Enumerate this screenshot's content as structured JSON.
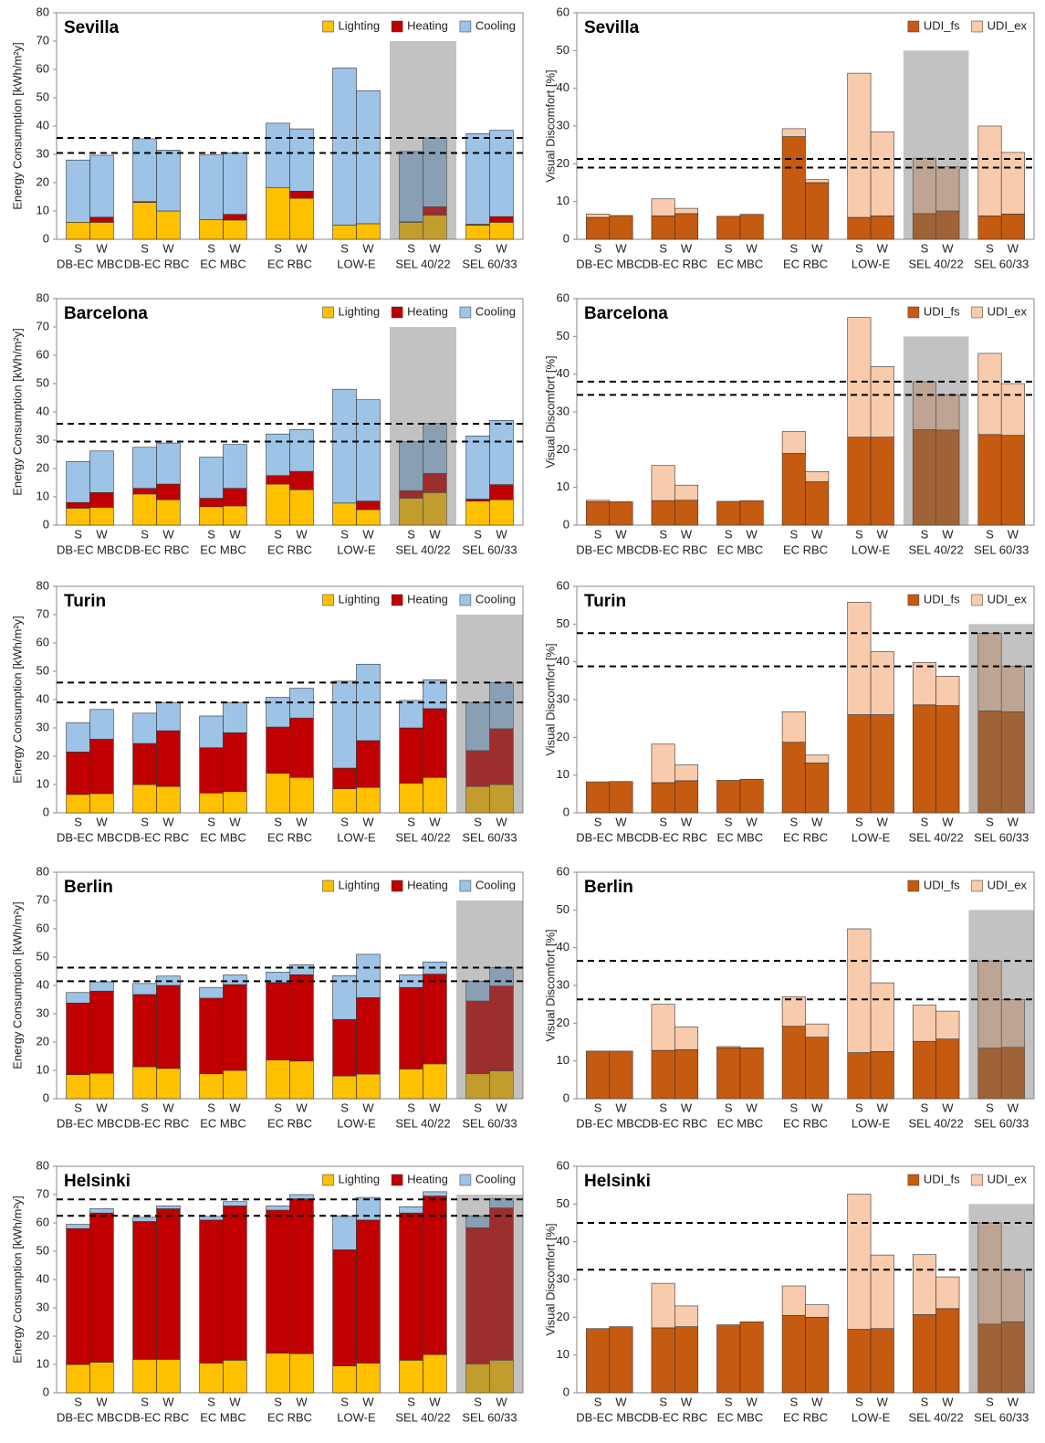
{
  "chart_data": [
    {
      "type": "stacked_bar",
      "title": "Sevilla",
      "y_label": "Energy Consumption [kWh/m²y]",
      "categories": [
        "S",
        "W",
        "S",
        "W",
        "S",
        "W",
        "S",
        "W",
        "S",
        "W",
        "S",
        "W",
        "S",
        "W"
      ],
      "groups": [
        "DB-EC MBC",
        "DB-EC RBC",
        "EC MBC",
        "EC RBC",
        "LOW-E",
        "SEL 40/22",
        "SEL 60/33"
      ],
      "series": [
        {
          "name": "Lighting",
          "color": "#ffc000",
          "values": [
            6,
            6,
            13,
            10,
            7,
            6.8,
            18.3,
            14.5,
            5,
            5.5,
            6,
            8.5,
            5,
            6
          ]
        },
        {
          "name": "Heating",
          "color": "#c00000",
          "values": [
            0,
            1.8,
            0.3,
            0,
            0,
            2,
            0,
            2.5,
            0,
            0,
            0.2,
            3,
            0.3,
            2
          ]
        },
        {
          "name": "Cooling",
          "color": "#9dc3e6",
          "values": [
            22,
            21.9,
            22.2,
            21.5,
            22.8,
            21.7,
            22.7,
            22,
            55.5,
            47,
            24.8,
            24.3,
            32,
            30.5
          ]
        }
      ],
      "ylim": [
        0,
        80
      ],
      "yticks": [
        0,
        10,
        20,
        30,
        40,
        50,
        60,
        70,
        80
      ],
      "ref_lines": [
        30.5,
        35.8
      ],
      "highlight": {
        "group": 5,
        "top": 70
      }
    },
    {
      "type": "stacked_bar",
      "title": "Sevilla",
      "y_label": "Visual Discomfort [%]",
      "categories": [
        "S",
        "W",
        "S",
        "W",
        "S",
        "W",
        "S",
        "W",
        "S",
        "W",
        "S",
        "W",
        "S",
        "W"
      ],
      "groups": [
        "DB-EC MBC",
        "DB-EC RBC",
        "EC MBC",
        "EC RBC",
        "LOW-E",
        "SEL 40/22",
        "SEL 60/33"
      ],
      "series": [
        {
          "name": "UDI_fs",
          "color": "#c55a11",
          "values": [
            5.8,
            6.3,
            6.2,
            6.8,
            6.1,
            6.6,
            27.2,
            15,
            5.8,
            6.2,
            6.8,
            7.5,
            6.2,
            6.7
          ]
        },
        {
          "name": "UDI_ex",
          "color": "#f8cbad",
          "values": [
            0.9,
            0,
            4.5,
            1.4,
            0,
            0,
            2.1,
            0.8,
            38.2,
            22.3,
            14.7,
            11.7,
            23.8,
            16.3
          ]
        }
      ],
      "ylim": [
        0,
        60
      ],
      "yticks": [
        0,
        10,
        20,
        30,
        40,
        50,
        60
      ],
      "ref_lines": [
        19,
        21.3
      ],
      "highlight": {
        "group": 5,
        "top": 50
      }
    },
    {
      "type": "stacked_bar",
      "title": "Barcelona",
      "y_label": "Energy Consumption [kWh/m²y]",
      "categories": [
        "S",
        "W",
        "S",
        "W",
        "S",
        "W",
        "S",
        "W",
        "S",
        "W",
        "S",
        "W",
        "S",
        "W"
      ],
      "groups": [
        "DB-EC MBC",
        "DB-EC RBC",
        "EC MBC",
        "EC RBC",
        "LOW-E",
        "SEL 40/22",
        "SEL 60/33"
      ],
      "series": [
        {
          "name": "Lighting",
          "color": "#ffc000",
          "values": [
            6,
            6.3,
            11,
            9,
            6.5,
            6.8,
            14.5,
            12.5,
            7.8,
            5.5,
            9.5,
            11.5,
            8.5,
            9
          ]
        },
        {
          "name": "Heating",
          "color": "#c00000",
          "values": [
            2,
            5.2,
            2,
            5.5,
            3,
            6.2,
            3,
            6.5,
            0,
            3,
            2.7,
            6.8,
            0.7,
            5.3
          ]
        },
        {
          "name": "Cooling",
          "color": "#9dc3e6",
          "values": [
            14.5,
            14.7,
            14.5,
            14.5,
            14.5,
            15.5,
            14.7,
            14.8,
            40.2,
            35.8,
            17.3,
            17.7,
            22.3,
            22.7
          ]
        }
      ],
      "ylim": [
        0,
        80
      ],
      "yticks": [
        0,
        10,
        20,
        30,
        40,
        50,
        60,
        70,
        80
      ],
      "ref_lines": [
        29.5,
        35.8
      ],
      "highlight": {
        "group": 5,
        "top": 70
      }
    },
    {
      "type": "stacked_bar",
      "title": "Barcelona",
      "y_label": "Visual Discomfort [%]",
      "categories": [
        "S",
        "W",
        "S",
        "W",
        "S",
        "W",
        "S",
        "W",
        "S",
        "W",
        "S",
        "W",
        "S",
        "W"
      ],
      "groups": [
        "DB-EC MBC",
        "DB-EC RBC",
        "EC MBC",
        "EC RBC",
        "LOW-E",
        "SEL 40/22",
        "SEL 60/33"
      ],
      "series": [
        {
          "name": "UDI_fs",
          "color": "#c55a11",
          "values": [
            6.2,
            6.2,
            6.5,
            6.6,
            6.3,
            6.5,
            19,
            11.5,
            23.3,
            23.3,
            25.3,
            25.2,
            24,
            23.8
          ]
        },
        {
          "name": "UDI_ex",
          "color": "#f8cbad",
          "values": [
            0.4,
            0,
            9.3,
            4,
            0,
            0,
            5.8,
            2.7,
            31.7,
            18.7,
            12.7,
            9.3,
            21.5,
            13.7
          ]
        }
      ],
      "ylim": [
        0,
        60
      ],
      "yticks": [
        0,
        10,
        20,
        30,
        40,
        50,
        60
      ],
      "ref_lines": [
        34.5,
        38
      ],
      "highlight": {
        "group": 5,
        "top": 50
      }
    },
    {
      "type": "stacked_bar",
      "title": "Turin",
      "y_label": "Energy Consumption [kWh/m²y]",
      "categories": [
        "S",
        "W",
        "S",
        "W",
        "S",
        "W",
        "S",
        "W",
        "S",
        "W",
        "S",
        "W",
        "S",
        "W"
      ],
      "groups": [
        "DB-EC MBC",
        "DB-EC RBC",
        "EC MBC",
        "EC RBC",
        "LOW-E",
        "SEL 40/22",
        "SEL 60/33"
      ],
      "series": [
        {
          "name": "Lighting",
          "color": "#ffc000",
          "values": [
            6.5,
            6.8,
            10,
            9.3,
            7,
            7.5,
            14,
            12.5,
            8.5,
            9,
            10.5,
            12.5,
            9.3,
            10
          ]
        },
        {
          "name": "Heating",
          "color": "#c00000",
          "values": [
            15,
            19.2,
            14.5,
            19.7,
            16,
            20.8,
            16.3,
            21,
            7.3,
            16.5,
            19.5,
            24.3,
            12.7,
            19.7
          ]
        },
        {
          "name": "Cooling",
          "color": "#9dc3e6",
          "values": [
            10.3,
            10.5,
            10.7,
            10,
            11.2,
            10.7,
            10.5,
            10.5,
            30.7,
            27,
            9.7,
            10.2,
            17,
            16.3
          ]
        }
      ],
      "ylim": [
        0,
        80
      ],
      "yticks": [
        0,
        10,
        20,
        30,
        40,
        50,
        60,
        70,
        80
      ],
      "ref_lines": [
        39,
        46
      ],
      "highlight": {
        "group": 6,
        "top": 70
      }
    },
    {
      "type": "stacked_bar",
      "title": "Turin",
      "y_label": "Visual Discomfort [%]",
      "categories": [
        "S",
        "W",
        "S",
        "W",
        "S",
        "W",
        "S",
        "W",
        "S",
        "W",
        "S",
        "W",
        "S",
        "W"
      ],
      "groups": [
        "DB-EC MBC",
        "DB-EC RBC",
        "EC MBC",
        "EC RBC",
        "LOW-E",
        "SEL 40/22",
        "SEL 60/33"
      ],
      "series": [
        {
          "name": "UDI_fs",
          "color": "#c55a11",
          "values": [
            8.2,
            8.3,
            8,
            8.5,
            8.6,
            8.9,
            18.7,
            13.2,
            26,
            26,
            28.6,
            28.4,
            27,
            26.8
          ]
        },
        {
          "name": "UDI_ex",
          "color": "#f8cbad",
          "values": [
            0,
            0,
            10.2,
            4.2,
            0,
            0,
            8.1,
            2.1,
            29.8,
            16.7,
            11.2,
            7.8,
            20.6,
            12
          ]
        }
      ],
      "ylim": [
        0,
        60
      ],
      "yticks": [
        0,
        10,
        20,
        30,
        40,
        50,
        60
      ],
      "ref_lines": [
        38.8,
        47.6
      ],
      "highlight": {
        "group": 6,
        "top": 50
      }
    },
    {
      "type": "stacked_bar",
      "title": "Berlin",
      "y_label": "Energy Consumption [kWh/m²y]",
      "categories": [
        "S",
        "W",
        "S",
        "W",
        "S",
        "W",
        "S",
        "W",
        "S",
        "W",
        "S",
        "W",
        "S",
        "W"
      ],
      "groups": [
        "DB-EC MBC",
        "DB-EC RBC",
        "EC MBC",
        "EC RBC",
        "LOW-E",
        "SEL 40/22",
        "SEL 60/33"
      ],
      "series": [
        {
          "name": "Lighting",
          "color": "#ffc000",
          "values": [
            8.5,
            9,
            11.3,
            10.7,
            8.8,
            10,
            13.7,
            13.3,
            8,
            8.7,
            10.5,
            12.3,
            8.8,
            9.8
          ]
        },
        {
          "name": "Heating",
          "color": "#c00000",
          "values": [
            25.3,
            29,
            25.5,
            29.3,
            26.7,
            30.3,
            27.3,
            30.5,
            20,
            27,
            28.8,
            31.7,
            25.7,
            30
          ]
        },
        {
          "name": "Cooling",
          "color": "#9dc3e6",
          "values": [
            3.7,
            3.3,
            3.9,
            3.3,
            3.8,
            3.4,
            3.7,
            3.5,
            15.5,
            15.3,
            4.4,
            4.3,
            7,
            6.5
          ]
        }
      ],
      "ylim": [
        0,
        80
      ],
      "yticks": [
        0,
        10,
        20,
        30,
        40,
        50,
        60,
        70,
        80
      ],
      "ref_lines": [
        41.5,
        46.3
      ],
      "highlight": {
        "group": 6,
        "top": 70
      }
    },
    {
      "type": "stacked_bar",
      "title": "Berlin",
      "y_label": "Visual Discomfort [%]",
      "categories": [
        "S",
        "W",
        "S",
        "W",
        "S",
        "W",
        "S",
        "W",
        "S",
        "W",
        "S",
        "W",
        "S",
        "W"
      ],
      "groups": [
        "DB-EC MBC",
        "DB-EC RBC",
        "EC MBC",
        "EC RBC",
        "LOW-E",
        "SEL 40/22",
        "SEL 60/33"
      ],
      "series": [
        {
          "name": "UDI_fs",
          "color": "#c55a11",
          "values": [
            12.6,
            12.6,
            12.8,
            13,
            13.5,
            13.5,
            19.2,
            16.3,
            12.2,
            12.5,
            15.2,
            15.8,
            13.4,
            13.6
          ]
        },
        {
          "name": "UDI_ex",
          "color": "#f8cbad",
          "values": [
            0,
            0,
            12.2,
            6,
            0.3,
            0,
            7.8,
            3.5,
            32.8,
            18.2,
            9.6,
            7.4,
            23.1,
            12.7
          ]
        }
      ],
      "ylim": [
        0,
        60
      ],
      "yticks": [
        0,
        10,
        20,
        30,
        40,
        50,
        60
      ],
      "ref_lines": [
        26.3,
        36.5
      ],
      "highlight": {
        "group": 6,
        "top": 50
      }
    },
    {
      "type": "stacked_bar",
      "title": "Helsinki",
      "y_label": "Energy Consumption [kWh/m²y]",
      "categories": [
        "S",
        "W",
        "S",
        "W",
        "S",
        "W",
        "S",
        "W",
        "S",
        "W",
        "S",
        "W",
        "S",
        "W"
      ],
      "groups": [
        "DB-EC MBC",
        "DB-EC RBC",
        "EC MBC",
        "EC RBC",
        "LOW-E",
        "SEL 40/22",
        "SEL 60/33"
      ],
      "series": [
        {
          "name": "Lighting",
          "color": "#ffc000",
          "values": [
            10,
            10.8,
            11.8,
            11.8,
            10.5,
            11.5,
            14,
            13.8,
            9.5,
            10.5,
            11.5,
            13.5,
            10.2,
            11.5
          ]
        },
        {
          "name": "Heating",
          "color": "#c00000",
          "values": [
            48,
            52.7,
            48.7,
            53.2,
            50.5,
            54.5,
            50.5,
            54.7,
            41,
            50.5,
            52,
            56,
            48.1,
            53.8
          ]
        },
        {
          "name": "Cooling",
          "color": "#9dc3e6",
          "values": [
            1.5,
            1.5,
            1.5,
            1,
            1.3,
            1.5,
            1.5,
            1.5,
            12,
            8,
            2.2,
            1.5,
            4.2,
            3.2
          ]
        }
      ],
      "ylim": [
        0,
        80
      ],
      "yticks": [
        0,
        10,
        20,
        30,
        40,
        50,
        60,
        70,
        80
      ],
      "ref_lines": [
        62.5,
        68.3
      ],
      "highlight": {
        "group": 6,
        "top": 70
      }
    },
    {
      "type": "stacked_bar",
      "title": "Helsinki",
      "y_label": "Visual Discomfort [%]",
      "categories": [
        "S",
        "W",
        "S",
        "W",
        "S",
        "W",
        "S",
        "W",
        "S",
        "W",
        "S",
        "W",
        "S",
        "W"
      ],
      "groups": [
        "DB-EC MBC",
        "DB-EC RBC",
        "EC MBC",
        "EC RBC",
        "LOW-E",
        "SEL 40/22",
        "SEL 60/33"
      ],
      "series": [
        {
          "name": "UDI_fs",
          "color": "#c55a11",
          "values": [
            17,
            17.5,
            17.2,
            17.5,
            18,
            18.8,
            20.5,
            20,
            16.8,
            17,
            20.7,
            22.3,
            18.2,
            18.8
          ]
        },
        {
          "name": "UDI_ex",
          "color": "#f8cbad",
          "values": [
            0,
            0,
            11.8,
            5.5,
            0,
            0,
            7.8,
            3.3,
            35.8,
            19.5,
            15.9,
            8.4,
            26.8,
            13.8
          ]
        }
      ],
      "ylim": [
        0,
        60
      ],
      "yticks": [
        0,
        10,
        20,
        30,
        40,
        50,
        60
      ],
      "ref_lines": [
        32.6,
        45
      ],
      "highlight": {
        "group": 6,
        "top": 50
      }
    }
  ]
}
